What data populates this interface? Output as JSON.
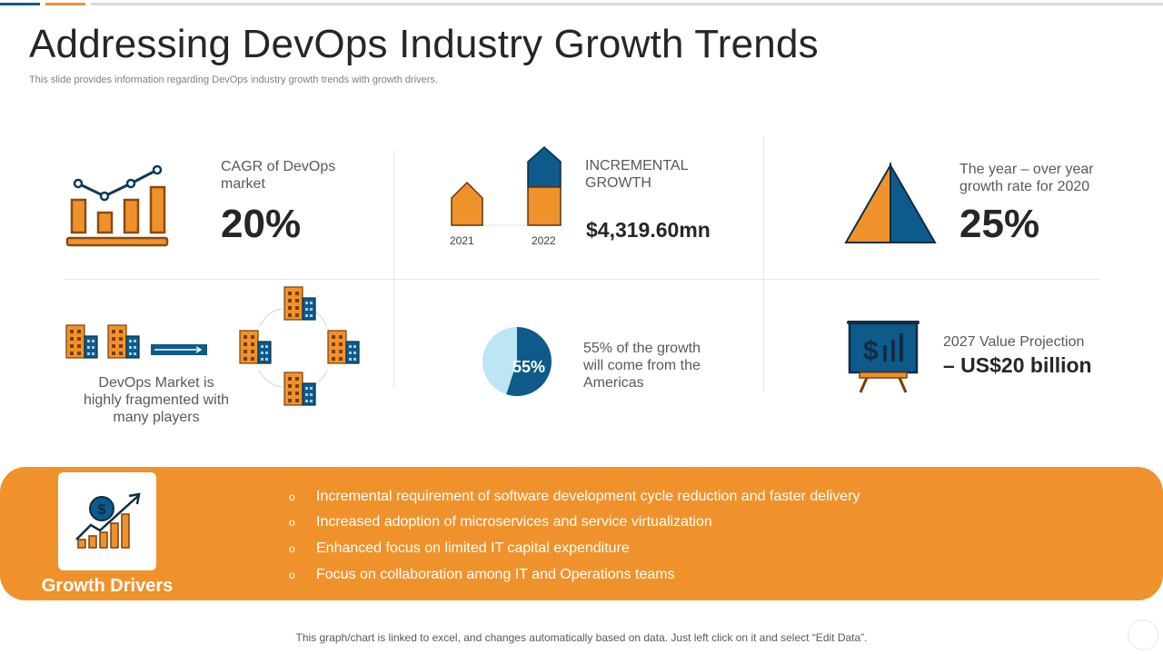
{
  "header": {
    "title": "Addressing DevOps Industry Growth Trends",
    "subtitle": "This slide provides information regarding DevOps industry growth trends with growth drivers."
  },
  "stats": {
    "cagr": {
      "label": "CAGR of DevOps market",
      "value": "20%",
      "icon": "bar-line-chart-icon"
    },
    "incremental": {
      "label": "INCREMENTAL GROWTH",
      "value": "$4,319.60mn",
      "year_from": "2021",
      "year_to": "2022",
      "icon": "arrow-bars-icon"
    },
    "yoy": {
      "label": "The year – over year growth rate for 2020",
      "value": "25%",
      "icon": "pyramid-icon"
    },
    "fragmented": {
      "label": "DevOps Market is highly fragmented with many players",
      "icon": "buildings-network-icon"
    },
    "americas": {
      "pie_value": "55%",
      "pie_fraction": 0.55,
      "label": "55% of the growth will come from the Americas"
    },
    "projection": {
      "label": "2027 Value Projection",
      "value": "– US$20 billion",
      "icon": "presentation-board-icon"
    }
  },
  "drivers": {
    "title": "Growth Drivers",
    "bullet": "o",
    "items": [
      "Incremental  requirement of software development cycle reduction and faster delivery",
      "Increased adoption of microservices and service virtualization",
      "Enhanced focus on limited IT  capital expenditure",
      "Focus on collaboration among IT  and Operations teams"
    ],
    "icon": "dollar-growth-chart-icon"
  },
  "footer": {
    "note": "This graph/chart is linked to excel, and changes automatically based on data. Just left click on it and select “Edit Data”."
  },
  "colors": {
    "orange": "#f0922b",
    "blue": "#0e5a8a",
    "dark": "#262626",
    "light_blue": "#bde6f5"
  }
}
